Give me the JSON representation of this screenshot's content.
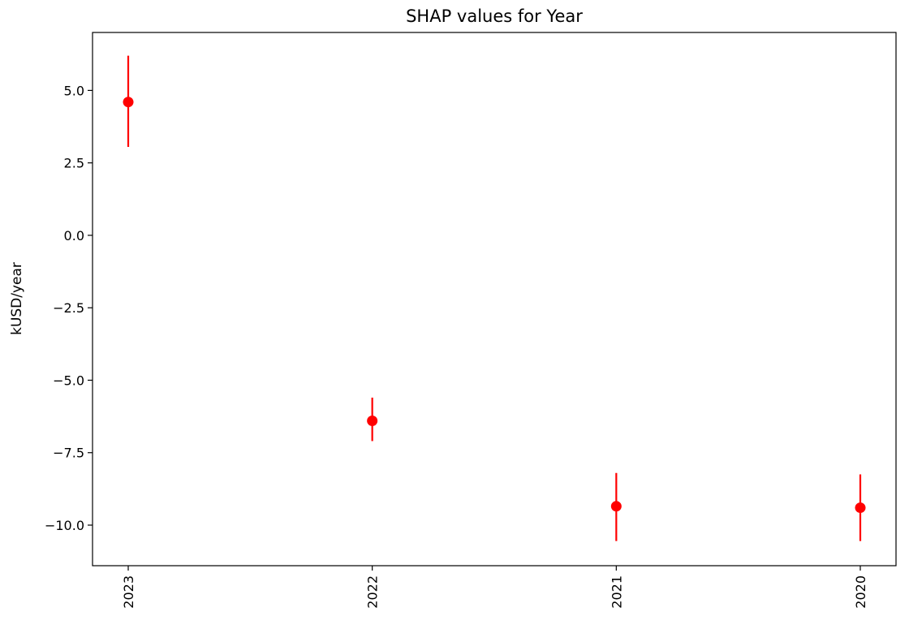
{
  "chart_data": {
    "type": "scatter",
    "title": "SHAP values for Year",
    "xlabel": "",
    "ylabel": "kUSD/year",
    "categories": [
      "2023",
      "2022",
      "2021",
      "2020"
    ],
    "series": [
      {
        "values": [
          4.6,
          -6.4,
          -9.35,
          -9.4
        ],
        "error_low": [
          3.05,
          -7.1,
          -10.55,
          -10.55
        ],
        "error_high": [
          6.2,
          -5.6,
          -8.2,
          -8.25
        ]
      }
    ],
    "ylim": [
      -11.4,
      7.0
    ],
    "yticks": [
      5.0,
      2.5,
      0.0,
      -2.5,
      -5.0,
      -7.5,
      -10.0
    ],
    "ytick_labels": [
      "5.0",
      "2.5",
      "0.0",
      "−2.5",
      "−5.0",
      "−7.5",
      "−10.0"
    ],
    "grid": false,
    "legend": "none",
    "marker_color": "#ff0000",
    "xtick_rotation": "vertical"
  }
}
